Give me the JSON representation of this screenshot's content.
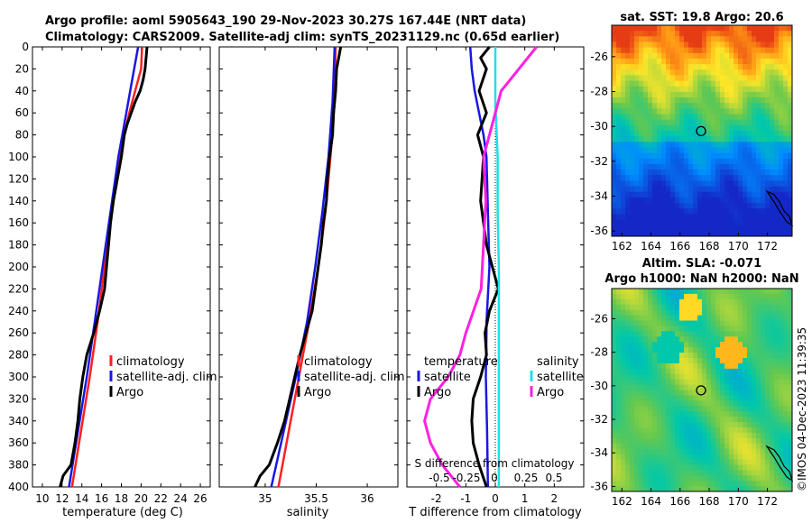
{
  "titles": {
    "line1": "Argo profile: aoml 5905643_190 29-Nov-2023 30.27S 167.44E (NRT data)",
    "line2": "Climatology: CARS2009. Satellite-adj clim: synTS_20231129.nc (0.65d earlier)"
  },
  "map1_title": "sat. SST: 19.8 Argo: 20.6",
  "map2_title1": "Altim. SLA: -0.071",
  "map2_title2": "Argo h1000: NaN h2000: NaN",
  "side_stamp": "©IMOS 04-Dec-2023 11:39:35",
  "colors": {
    "climatology": "#ff2020",
    "satellite": "#1818e0",
    "argo": "#000000",
    "sat_salinity": "#20e0e8",
    "argo_salinity": "#ff20e0"
  },
  "chart_data": [
    {
      "type": "line",
      "name": "temperature",
      "xlabel": "temperature (deg C)",
      "ylabel": "depth",
      "xlim": [
        9,
        27
      ],
      "ylim": [
        0,
        400
      ],
      "xticks": [
        10,
        12,
        14,
        16,
        18,
        20,
        22,
        24,
        26
      ],
      "yticks": [
        0,
        20,
        40,
        60,
        80,
        100,
        120,
        140,
        160,
        180,
        200,
        220,
        240,
        260,
        280,
        300,
        320,
        340,
        360,
        380,
        400
      ],
      "legend": [
        "climatology",
        "satellite-adj. clim",
        "Argo"
      ],
      "series": [
        {
          "name": "climatology",
          "color_key": "climatology",
          "depth": [
            0,
            20,
            40,
            60,
            80,
            100,
            150,
            200,
            250,
            300,
            350,
            400
          ],
          "values": [
            20.1,
            20.0,
            19.4,
            18.8,
            18.3,
            17.9,
            17.0,
            16.3,
            15.6,
            14.8,
            13.9,
            13.0
          ]
        },
        {
          "name": "satellite-adj. clim",
          "color_key": "satellite",
          "depth": [
            0,
            20,
            40,
            60,
            80,
            100,
            150,
            200,
            250,
            300,
            350,
            400
          ],
          "values": [
            19.7,
            19.3,
            18.9,
            18.5,
            18.1,
            17.7,
            16.9,
            16.1,
            15.3,
            14.5,
            13.6,
            12.7
          ]
        },
        {
          "name": "Argo",
          "color_key": "argo",
          "depth": [
            0,
            10,
            20,
            30,
            40,
            50,
            60,
            70,
            80,
            100,
            120,
            140,
            160,
            180,
            200,
            220,
            240,
            260,
            280,
            300,
            320,
            340,
            360,
            380,
            390,
            400
          ],
          "values": [
            20.6,
            20.5,
            20.4,
            20.2,
            19.9,
            19.4,
            19.0,
            18.6,
            18.3,
            18.0,
            17.6,
            17.2,
            16.9,
            16.7,
            16.5,
            16.3,
            15.8,
            15.2,
            14.5,
            14.1,
            13.8,
            13.6,
            13.3,
            12.9,
            12.1,
            11.8
          ]
        }
      ]
    },
    {
      "type": "line",
      "name": "salinity",
      "xlabel": "salinity",
      "ylabel": "depth",
      "xlim": [
        34.55,
        36.3
      ],
      "ylim": [
        0,
        400
      ],
      "xticks": [
        35,
        35.5,
        36
      ],
      "legend": [
        "climatology",
        "satellite-adj. clim",
        "Argo"
      ],
      "series": [
        {
          "name": "climatology",
          "color_key": "climatology",
          "depth": [
            0,
            50,
            100,
            150,
            200,
            250,
            300,
            350,
            400
          ],
          "values": [
            35.69,
            35.68,
            35.64,
            35.59,
            35.52,
            35.43,
            35.33,
            35.23,
            35.13
          ]
        },
        {
          "name": "satellite-adj. clim",
          "color_key": "satellite",
          "depth": [
            0,
            50,
            100,
            150,
            200,
            250,
            300,
            350,
            400
          ],
          "values": [
            35.68,
            35.66,
            35.62,
            35.56,
            35.49,
            35.41,
            35.3,
            35.18,
            35.06
          ]
        },
        {
          "name": "Argo",
          "color_key": "argo",
          "depth": [
            0,
            10,
            20,
            40,
            60,
            80,
            100,
            120,
            140,
            160,
            180,
            200,
            220,
            240,
            260,
            280,
            300,
            320,
            340,
            360,
            380,
            390,
            400
          ],
          "values": [
            35.74,
            35.72,
            35.7,
            35.69,
            35.67,
            35.66,
            35.63,
            35.61,
            35.6,
            35.57,
            35.55,
            35.52,
            35.49,
            35.46,
            35.4,
            35.34,
            35.29,
            35.24,
            35.19,
            35.12,
            35.04,
            34.95,
            34.9
          ]
        }
      ]
    },
    {
      "type": "line",
      "name": "difference",
      "xlabel": "T difference from climatology",
      "top_label": "S difference from climatology",
      "ylabel": "depth",
      "xlim": [
        -3,
        3
      ],
      "ylim": [
        0,
        400
      ],
      "xticks": [
        -2,
        -1,
        0,
        1,
        2
      ],
      "s_ticks": [
        "-0.5",
        "-0.25",
        "0",
        "0.25",
        "0.5"
      ],
      "legend_temperature_header": "temperature",
      "legend_salinity_header": "salinity",
      "legend_temperature": [
        "satellite",
        "Argo"
      ],
      "legend_salinity": [
        "satellite",
        "Argo"
      ],
      "series": [
        {
          "name": "T satellite",
          "color_key": "satellite",
          "depth": [
            0,
            20,
            40,
            60,
            80,
            100,
            150,
            200,
            250,
            260,
            300,
            350,
            400
          ],
          "values": [
            -0.85,
            -0.8,
            -0.7,
            -0.55,
            -0.4,
            -0.3,
            -0.25,
            -0.2,
            -0.3,
            -0.3,
            -0.32,
            -0.28,
            -0.25
          ]
        },
        {
          "name": "T Argo",
          "color_key": "argo",
          "depth": [
            0,
            10,
            20,
            40,
            60,
            80,
            100,
            140,
            180,
            220,
            240,
            260,
            280,
            300,
            320,
            340,
            360,
            380,
            400
          ],
          "values": [
            -0.2,
            -0.5,
            -0.3,
            -0.55,
            -0.3,
            -0.6,
            -0.4,
            -0.5,
            -0.3,
            0.1,
            -0.2,
            -0.35,
            -0.3,
            -0.5,
            -0.75,
            -0.8,
            -0.75,
            -0.55,
            -0.3
          ]
        },
        {
          "name": "S satellite",
          "color_key": "sat_salinity",
          "depth": [
            0,
            50,
            100,
            150,
            200,
            250,
            300,
            350,
            400
          ],
          "values": [
            0.0,
            0.0,
            0.02,
            0.02,
            0.03,
            0.03,
            0.03,
            0.03,
            0.03
          ]
        },
        {
          "name": "S Argo",
          "color_key": "argo_salinity",
          "depth": [
            0,
            20,
            40,
            60,
            80,
            100,
            140,
            180,
            220,
            260,
            280,
            300,
            320,
            340,
            360,
            380,
            400
          ],
          "values": [
            0.35,
            0.2,
            0.05,
            0.0,
            -0.05,
            -0.1,
            -0.08,
            -0.1,
            -0.12,
            -0.25,
            -0.3,
            -0.4,
            -0.55,
            -0.6,
            -0.55,
            -0.45,
            -0.3
          ]
        }
      ]
    }
  ],
  "map1": {
    "type": "heatmap",
    "variable": "sat. SST",
    "xticks": [
      162,
      164,
      166,
      168,
      170,
      172
    ],
    "yticks": [
      -26,
      -28,
      -30,
      -32,
      -34,
      -36
    ],
    "lon_range": [
      161.3,
      173.7
    ],
    "lat_range": [
      -36.3,
      -24.2
    ],
    "marker_lon": 167.44,
    "marker_lat": -30.27
  },
  "map2": {
    "type": "heatmap",
    "variable": "Altim. SLA",
    "xticks": [
      162,
      164,
      166,
      168,
      170,
      172
    ],
    "yticks": [
      -26,
      -28,
      -30,
      -32,
      -34,
      -36
    ],
    "lon_range": [
      161.3,
      173.7
    ],
    "lat_range": [
      -36.3,
      -24.2
    ],
    "marker_lon": 167.44,
    "marker_lat": -30.27
  }
}
